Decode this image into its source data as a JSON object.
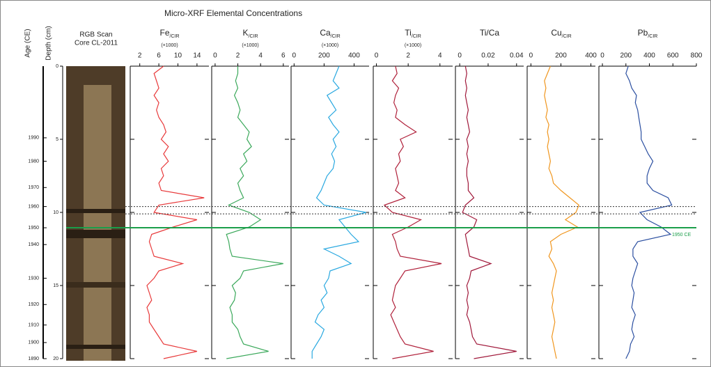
{
  "figure": {
    "title": "Micro-XRF Elemental Concentrations",
    "age_label": "Age (CE)",
    "depth_label": "Depth (cm)",
    "core_label": [
      "RGB Scan",
      "Core CL-2011"
    ],
    "depth_lim": [
      0,
      20
    ],
    "depth_ticks": [
      0,
      5,
      10,
      15,
      20
    ],
    "age_labels": [
      "1990",
      "1980",
      "1970",
      "1960",
      "1950",
      "1940",
      "1930",
      "1920",
      "1910",
      "1900",
      "1890"
    ],
    "age_depths": [
      4.9,
      6.5,
      8.3,
      9.6,
      11.05,
      12.2,
      14.5,
      16.3,
      17.7,
      18.9,
      20
    ],
    "reference_lines": [
      {
        "depth": 9.6,
        "style": "dotted",
        "color": "#333333"
      },
      {
        "depth": 10.1,
        "style": "dotted",
        "color": "#333333"
      },
      {
        "depth": 11.05,
        "style": "solid",
        "color": "#1a9e4a",
        "label": "1950 CE"
      }
    ]
  },
  "chart_data": [
    {
      "type": "line",
      "xlabel": "Fe",
      "xlabel_sub": "/CIR",
      "xunit": "(×1000)",
      "color": "#e8393a",
      "xlim": [
        0,
        16.5
      ],
      "xticks": [
        2,
        6,
        10,
        14
      ],
      "y": [
        0,
        0.5,
        1,
        1.5,
        2,
        2.5,
        3,
        3.5,
        4,
        4.5,
        5,
        5.5,
        6,
        6.5,
        7,
        7.5,
        8,
        8.5,
        9,
        9.5,
        10,
        10.5,
        11,
        11.5,
        12,
        12.5,
        13,
        13.5,
        14,
        14.5,
        15,
        15.5,
        16,
        16.5,
        17,
        17.5,
        18,
        18.5,
        19,
        19.5,
        20
      ],
      "values": [
        7,
        5,
        5.5,
        6,
        5,
        6,
        5.5,
        6,
        7,
        7.5,
        6.5,
        8,
        7,
        8,
        6.5,
        7,
        6,
        6.5,
        15.5,
        6,
        5,
        14,
        9,
        4.5,
        4,
        4.5,
        5,
        11,
        6,
        5,
        3.5,
        4,
        4.5,
        3.5,
        4,
        4,
        5,
        6,
        7,
        14,
        7
      ]
    },
    {
      "type": "line",
      "xlabel": "K",
      "xlabel_sub": "/CIR",
      "xunit": "(×1000)",
      "color": "#3aa85a",
      "xlim": [
        -0.3,
        6.5
      ],
      "xticks": [
        0,
        2,
        4,
        6
      ],
      "y": [
        0,
        0.5,
        1,
        1.5,
        2,
        2.5,
        3,
        3.5,
        4,
        4.5,
        5,
        5.5,
        6,
        6.5,
        7,
        7.5,
        8,
        8.5,
        9,
        9.5,
        10,
        10.5,
        11,
        11.5,
        12,
        12.5,
        13,
        13.5,
        14,
        14.5,
        15,
        15.5,
        16,
        16.5,
        17,
        17.5,
        18,
        18.5,
        19,
        19.5,
        20
      ],
      "values": [
        2,
        2,
        1.8,
        2,
        1.7,
        2,
        2.2,
        2,
        2.5,
        3,
        2.8,
        3.2,
        2.5,
        2.8,
        2.2,
        2.5,
        2,
        2.2,
        2.5,
        1.2,
        3,
        4,
        3,
        1,
        1.2,
        1.3,
        1.5,
        6,
        2.5,
        2.2,
        1.5,
        1.8,
        1.7,
        1.3,
        1.5,
        1.5,
        2,
        2.2,
        2.5,
        4.7,
        1
      ]
    },
    {
      "type": "line",
      "xlabel": "Ca",
      "xlabel_sub": "/CIR",
      "xunit": "(×1000)",
      "color": "#29a8e0",
      "xlim": [
        -20,
        500
      ],
      "xticks": [
        0,
        200,
        400
      ],
      "y": [
        0,
        0.5,
        1,
        1.5,
        2,
        2.5,
        3,
        3.5,
        4,
        4.5,
        5,
        5.5,
        6,
        6.5,
        7,
        7.5,
        8,
        8.5,
        9,
        9.5,
        10,
        10.5,
        11,
        11.5,
        12,
        12.5,
        13,
        13.5,
        14,
        14.5,
        15,
        15.5,
        16,
        16.5,
        17,
        17.5,
        18,
        18.5,
        19,
        19.5,
        20
      ],
      "values": [
        300,
        280,
        260,
        300,
        220,
        250,
        280,
        230,
        260,
        300,
        260,
        280,
        250,
        270,
        260,
        220,
        200,
        180,
        150,
        200,
        480,
        300,
        340,
        380,
        430,
        200,
        300,
        380,
        240,
        230,
        200,
        220,
        180,
        200,
        160,
        140,
        200,
        180,
        150,
        120,
        120
      ]
    },
    {
      "type": "line",
      "xlabel": "Ti",
      "xlabel_sub": "/CIR",
      "xunit": "(×1000)",
      "color": "#b0203a",
      "xlim": [
        -0.2,
        4.8
      ],
      "xticks": [
        0,
        2,
        4
      ],
      "y": [
        0,
        0.5,
        1,
        1.5,
        2,
        2.5,
        3,
        3.5,
        4,
        4.5,
        5,
        5.5,
        6,
        6.5,
        7,
        7.5,
        8,
        8.5,
        9,
        9.5,
        10,
        10.5,
        11,
        11.5,
        12,
        12.5,
        13,
        13.5,
        14,
        14.5,
        15,
        15.5,
        16,
        16.5,
        17,
        17.5,
        18,
        18.5,
        19,
        19.5,
        20
      ],
      "values": [
        1.2,
        1.3,
        1,
        1.4,
        1.2,
        1.1,
        1.3,
        1.2,
        1.8,
        2.5,
        1.5,
        1.7,
        1.4,
        1.5,
        1.2,
        1.3,
        1.4,
        1.2,
        1.8,
        0.5,
        1,
        2.8,
        2,
        1,
        1.2,
        1.3,
        1.5,
        4.1,
        1.8,
        1.5,
        1.2,
        1.1,
        1,
        1.2,
        0.9,
        1.1,
        1.3,
        1.5,
        1.8,
        3.6,
        1
      ]
    },
    {
      "type": "line",
      "xlabel": "Ti/Ca",
      "color": "#a0183a",
      "xlim": [
        -0.003,
        0.045
      ],
      "xticks": [
        0,
        0.02,
        0.04
      ],
      "y": [
        0,
        0.5,
        1,
        1.5,
        2,
        2.5,
        3,
        3.5,
        4,
        4.5,
        5,
        5.5,
        6,
        6.5,
        7,
        7.5,
        8,
        8.5,
        9,
        9.5,
        10,
        10.5,
        11,
        11.5,
        12,
        12.5,
        13,
        13.5,
        14,
        14.5,
        15,
        15.5,
        16,
        16.5,
        17,
        17.5,
        18,
        18.5,
        19,
        19.5,
        20
      ],
      "values": [
        0.004,
        0.005,
        0.004,
        0.005,
        0.004,
        0.005,
        0.006,
        0.005,
        0.006,
        0.007,
        0.005,
        0.006,
        0.005,
        0.006,
        0.005,
        0.005,
        0.006,
        0.006,
        0.01,
        0.004,
        0.002,
        0.012,
        0.01,
        0.004,
        0.005,
        0.006,
        0.007,
        0.022,
        0.008,
        0.007,
        0.005,
        0.006,
        0.005,
        0.006,
        0.005,
        0.007,
        0.008,
        0.009,
        0.012,
        0.04,
        0.01
      ]
    },
    {
      "type": "line",
      "xlabel": "Cu",
      "xlabel_sub": "/CIR",
      "color": "#f0961e",
      "xlim": [
        -25,
        430
      ],
      "xticks": [
        0,
        200,
        400
      ],
      "y": [
        0,
        0.5,
        1,
        1.5,
        2,
        2.5,
        3,
        3.5,
        4,
        4.5,
        5,
        5.5,
        6,
        6.5,
        7,
        7.5,
        8,
        8.5,
        9,
        9.5,
        10,
        10.5,
        11,
        11.5,
        12,
        12.5,
        13,
        13.5,
        14,
        14.5,
        15,
        15.5,
        16,
        16.5,
        17,
        17.5,
        18,
        18.5,
        19,
        19.5,
        20
      ],
      "values": [
        130,
        110,
        90,
        100,
        90,
        100,
        110,
        100,
        120,
        110,
        120,
        110,
        120,
        130,
        120,
        140,
        150,
        200,
        260,
        320,
        300,
        230,
        310,
        200,
        130,
        140,
        120,
        150,
        170,
        160,
        150,
        140,
        150,
        140,
        150,
        160,
        150,
        140,
        150,
        160,
        170
      ]
    },
    {
      "type": "line",
      "xlabel": "Pb",
      "xlabel_sub": "/CIR",
      "color": "#2a4ea0",
      "xlim": [
        -30,
        800
      ],
      "xticks": [
        0,
        200,
        400,
        600,
        800
      ],
      "y": [
        0,
        0.5,
        1,
        1.5,
        2,
        2.5,
        3,
        3.5,
        4,
        4.5,
        5,
        5.5,
        6,
        6.5,
        7,
        7.5,
        8,
        8.5,
        9,
        9.5,
        10,
        10.5,
        11,
        11.5,
        12,
        12.5,
        13,
        13.5,
        14,
        14.5,
        15,
        15.5,
        16,
        16.5,
        17,
        17.5,
        18,
        18.5,
        19,
        19.5,
        20
      ],
      "values": [
        220,
        200,
        230,
        250,
        290,
        280,
        300,
        310,
        320,
        330,
        330,
        360,
        390,
        430,
        400,
        380,
        380,
        430,
        560,
        590,
        320,
        380,
        500,
        580,
        300,
        260,
        260,
        300,
        280,
        260,
        250,
        270,
        260,
        250,
        280,
        260,
        250,
        270,
        240,
        230,
        200
      ]
    }
  ]
}
